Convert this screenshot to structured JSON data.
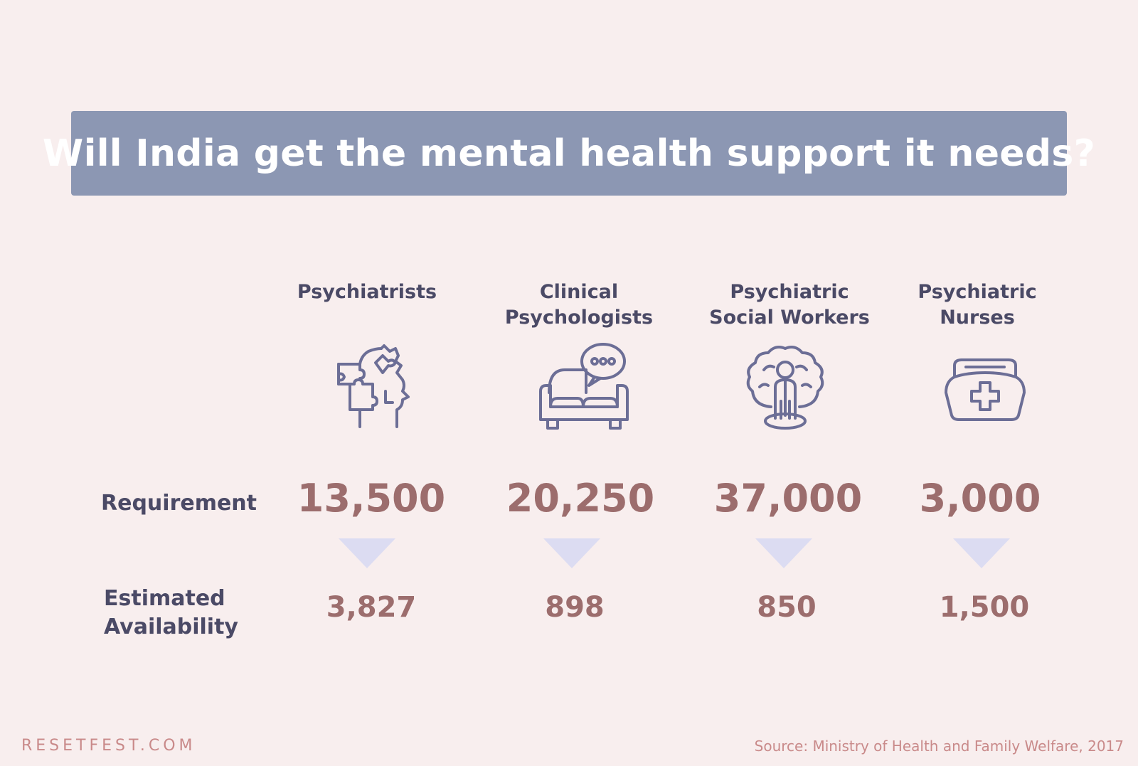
{
  "title": "Will India get the mental health support it needs?",
  "row_labels": {
    "requirement": "Requirement",
    "availability_line1": "Estimated",
    "availability_line2": "Availability"
  },
  "columns": [
    {
      "label_line1": "Psychiatrists",
      "label_line2": "",
      "icon": "puzzle-head-icon",
      "requirement": "13,500",
      "availability": "3,827"
    },
    {
      "label_line1": "Clinical",
      "label_line2": "Psychologists",
      "icon": "couch-speech-bubble-icon",
      "requirement": "20,250",
      "availability": "898"
    },
    {
      "label_line1": "Psychiatric",
      "label_line2": "Social Workers",
      "icon": "person-brain-icon",
      "requirement": "37,000",
      "availability": "850"
    },
    {
      "label_line1": "Psychiatric",
      "label_line2": "Nurses",
      "icon": "nurse-cap-icon",
      "requirement": "3,000",
      "availability": "1,500"
    }
  ],
  "footer": {
    "brand": "RESETFEST.COM",
    "source": "Source: Ministry of Health and Family Welfare, 2017"
  },
  "colors": {
    "background": "#f8eeee",
    "title_banner": "#8c97b3",
    "label_text": "#4b4a66",
    "value_text": "#9c6d6d",
    "arrow": "#dcdcf2",
    "icon_stroke": "#6c6e96",
    "footer_text": "#c98a8a"
  },
  "chart_data": {
    "type": "table",
    "title": "Will India get the mental health support it needs?",
    "categories": [
      "Psychiatrists",
      "Clinical Psychologists",
      "Psychiatric Social Workers",
      "Psychiatric Nurses"
    ],
    "series": [
      {
        "name": "Requirement",
        "values": [
          13500,
          20250,
          37000,
          3000
        ]
      },
      {
        "name": "Estimated Availability",
        "values": [
          3827,
          898,
          850,
          1500
        ]
      }
    ]
  }
}
